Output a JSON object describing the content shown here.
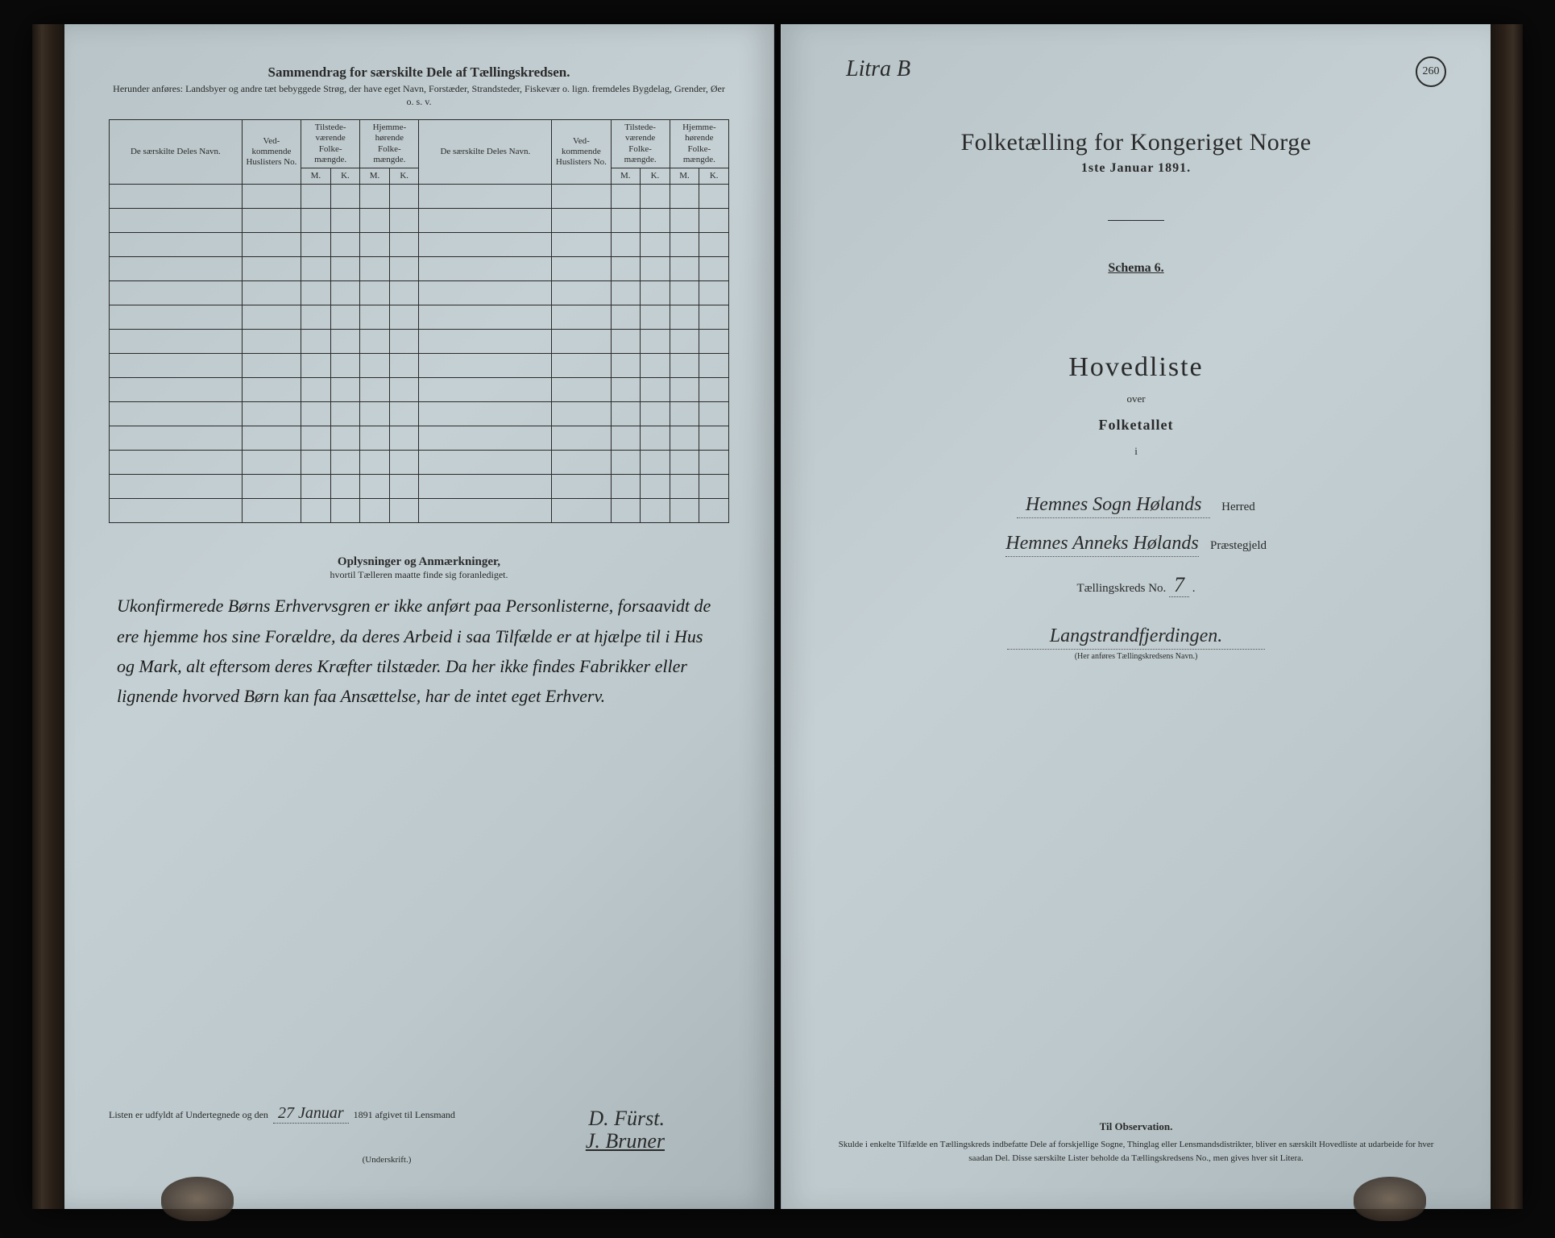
{
  "left": {
    "summary_title": "Sammendrag for særskilte Dele af Tællingskredsen.",
    "summary_sub": "Herunder anføres: Landsbyer og andre tæt bebyggede Strøg, der have eget Navn, Forstæder, Strandsteder, Fiskevær o. lign. fremdeles Bygdelag, Grender, Øer o. s. v.",
    "cols": {
      "name": "De særskilte Deles Navn.",
      "no": "Ved-\nkommende\nHuslisters\nNo.",
      "present": "Tilstede-\nværende\nFolke-\nmængde.",
      "resident": "Hjemme-\nhørende\nFolke-\nmængde.",
      "m": "M.",
      "k": "K."
    },
    "oplysninger_title": "Oplysninger og Anmærkninger,",
    "oplysninger_sub": "hvortil Tælleren maatte finde sig foranlediget.",
    "handwritten_notes": "Ukonfirmerede Børns Erhvervsgren er ikke anført paa Personlisterne, forsaavidt de ere hjemme hos sine Forældre, da deres Arbeid i saa Tilfælde er at hjælpe til i Hus og Mark, alt eftersom deres Kræfter tilstæder. Da her ikke findes Fabrikker eller lignende hvorved Børn kan faa Ansættelse, har de intet eget Erhverv.",
    "footer_prefix": "Listen er udfyldt af Undertegnede og den",
    "footer_date_hw": "27 Januar",
    "footer_year": "1891 afgivet til Lensmand",
    "signature1": "D. Fürst.",
    "signature2": "J. Bruner",
    "underskrift": "(Underskrift.)"
  },
  "right": {
    "litra": "Litra B",
    "page_no": "260",
    "census_title": "Folketælling for Kongeriget Norge",
    "census_date": "1ste Januar 1891.",
    "schema": "Schema 6.",
    "hovedliste": "Hovedliste",
    "over": "over",
    "folketallet": "Folketallet",
    "i": "i",
    "herred_hw": "Hemnes Sogn   Hølands",
    "herred_label": "Herred",
    "prest_hw": "Hemnes Anneks   Hølands",
    "prest_label": "Præstegjeld",
    "kreds_label_pre": "Tællingskreds No.",
    "kreds_no": "7",
    "kreds_name_hw": "Langstrandfjerdingen.",
    "her_anfores": "(Her anføres Tællingskredsens Navn.)",
    "obs_title": "Til Observation.",
    "obs_text": "Skulde i enkelte Tilfælde en Tællingskreds indbefatte Dele af forskjellige Sogne, Thinglag eller Lensmandsdistrikter, bliver en særskilt Hovedliste at udarbeide for hver saadan Del. Disse særskilte Lister beholde da Tællingskredsens No., men gives hver sit Litera."
  },
  "style": {
    "paper": "#bcc8cc",
    "ink": "#2a2a2a",
    "row_count": 14
  }
}
